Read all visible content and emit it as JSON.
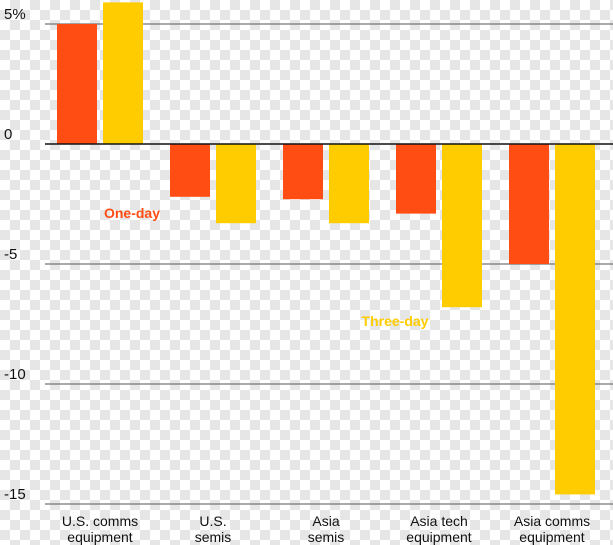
{
  "chart_data": {
    "type": "bar",
    "categories": [
      [
        "U.S. comms",
        "equipment"
      ],
      [
        "U.S.",
        "semis"
      ],
      [
        "Asia",
        "semis"
      ],
      [
        "Asia tech",
        "equipment"
      ],
      [
        "Asia comms",
        "equipment"
      ]
    ],
    "series": [
      {
        "name": "One-day",
        "color": "#ff4d14",
        "values": [
          5.0,
          -2.2,
          -2.3,
          -2.9,
          -5.0
        ]
      },
      {
        "name": "Three-day",
        "color": "#ffcc00",
        "values": [
          5.9,
          -3.3,
          -3.3,
          -6.8,
          -14.6
        ]
      }
    ],
    "yticks": [
      {
        "value": 5,
        "label": "5%"
      },
      {
        "value": 0,
        "label": "0"
      },
      {
        "value": -5,
        "label": "-5"
      },
      {
        "value": -10,
        "label": "-10"
      },
      {
        "value": -15,
        "label": "-15"
      }
    ],
    "ylim": [
      -15.5,
      6
    ],
    "grid": "horizontal",
    "title": "",
    "xlabel": "",
    "ylabel": ""
  }
}
